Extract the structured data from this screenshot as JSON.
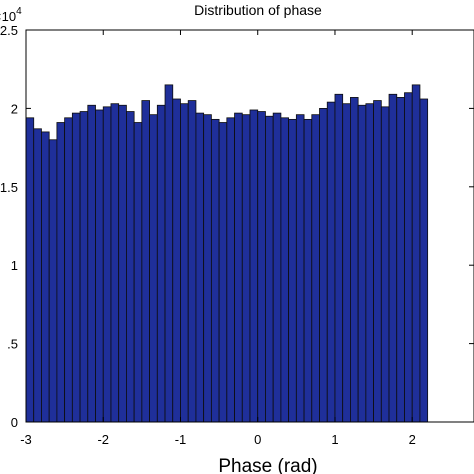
{
  "chart_data": {
    "type": "bar",
    "title": "Distribution of phase",
    "xlabel": "Phase (rad)",
    "ylabel": "",
    "y_exponent_label": "×10",
    "y_exponent": "4",
    "xlim": [
      -3.0,
      2.8
    ],
    "ylim": [
      0,
      25000
    ],
    "x_ticks": [
      -3,
      -2,
      -1,
      0,
      1,
      2
    ],
    "x_tick_labels": [
      "-3",
      "-2",
      "-1",
      "0",
      "1",
      "2"
    ],
    "y_ticks": [
      0,
      5000,
      10000,
      15000,
      20000,
      25000
    ],
    "y_tick_labels": [
      "0",
      ".5",
      "1",
      "1.5",
      "2",
      "2.5"
    ],
    "bin_width": 0.1,
    "bin_start": -3.0,
    "values": [
      19400,
      18700,
      18500,
      18000,
      19100,
      19400,
      19700,
      19800,
      20200,
      19900,
      20100,
      20300,
      20200,
      19800,
      19100,
      20500,
      19600,
      20200,
      21500,
      20600,
      20300,
      20500,
      19700,
      19600,
      19300,
      19100,
      19400,
      19700,
      19600,
      19900,
      19800,
      19500,
      19700,
      19400,
      19300,
      19600,
      19300,
      19600,
      20000,
      20400,
      20900,
      20300,
      20700,
      20200,
      20300,
      20500,
      20100,
      20900,
      20700,
      21000,
      21500,
      20600
    ],
    "bar_color": "#1f2f9a",
    "bar_edge_color": "#0d0d0d",
    "grid": false,
    "legend": false
  }
}
